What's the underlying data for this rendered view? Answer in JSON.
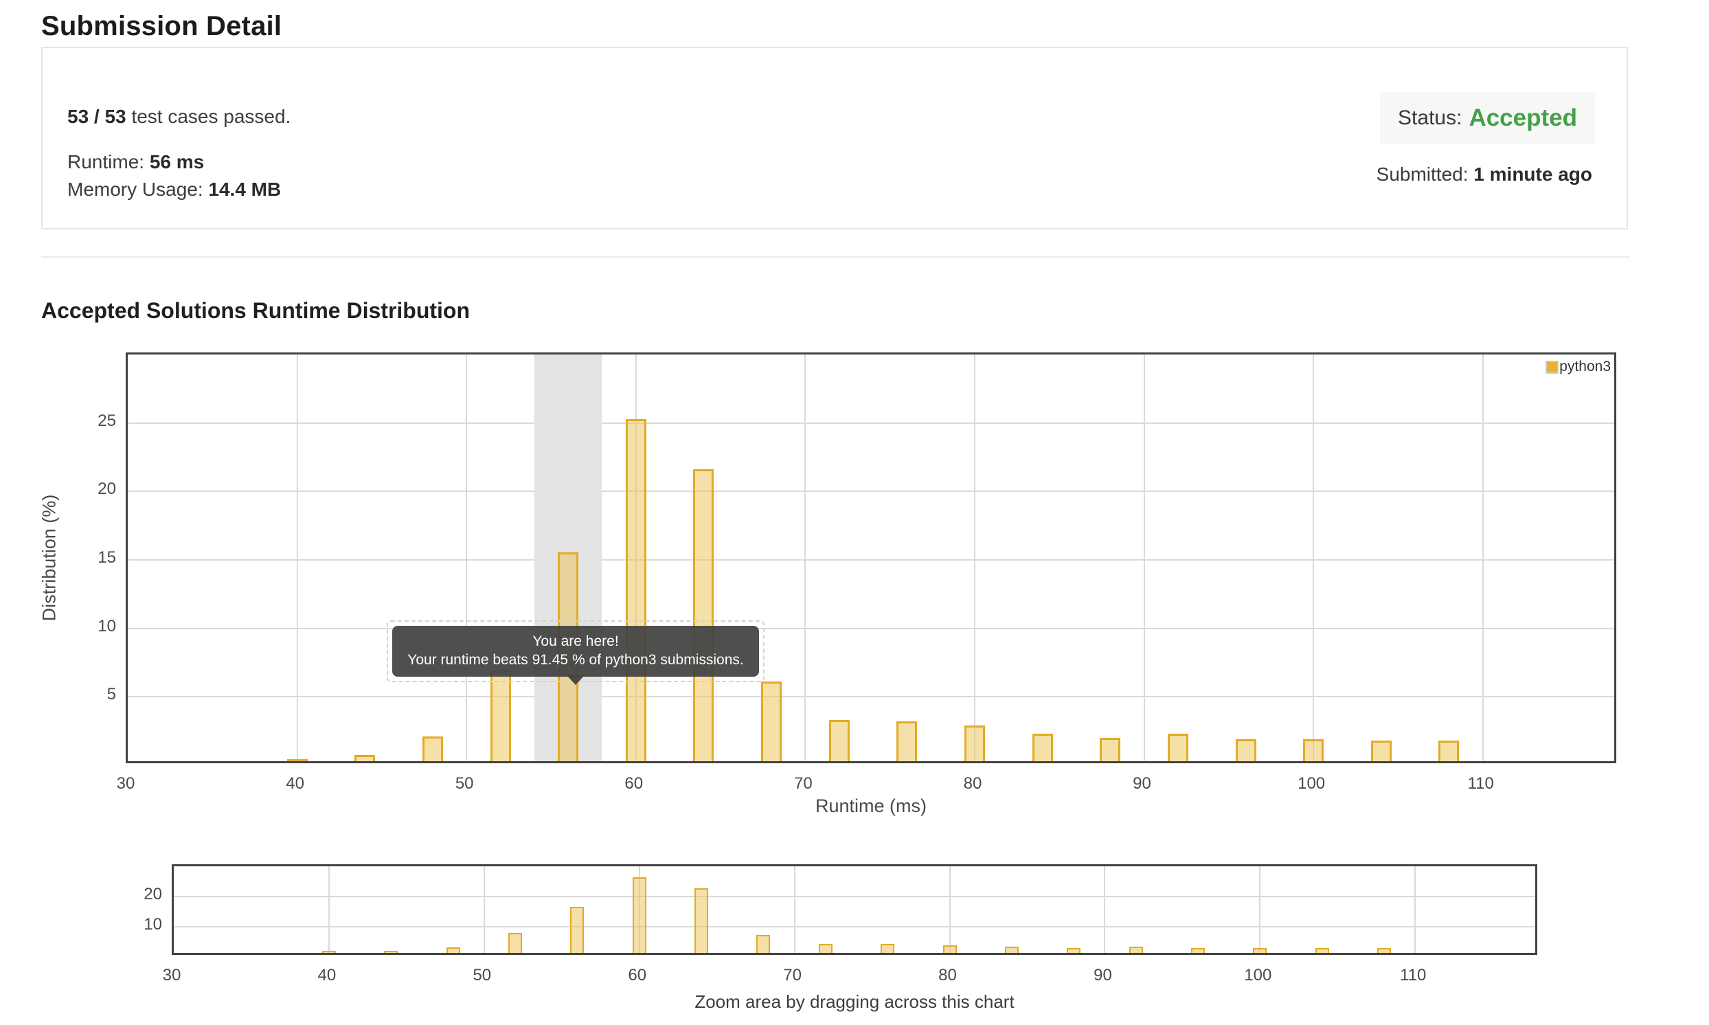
{
  "page": {
    "title": "Submission Detail"
  },
  "summary": {
    "tests_passed_bold": "53 / 53",
    "tests_passed_rest": " test cases passed.",
    "runtime_label": "Runtime: ",
    "runtime_value": "56 ms",
    "memory_label": "Memory Usage: ",
    "memory_value": "14.4 MB",
    "status_label": "Status:",
    "status_value": "Accepted",
    "status_color": "#43a047",
    "submitted_label": "Submitted: ",
    "submitted_value": "1 minute ago"
  },
  "section": {
    "title": "Accepted Solutions Runtime Distribution"
  },
  "tooltip": {
    "line1": "You are here!",
    "line2": "Your runtime beats 91.45 % of python3 submissions."
  },
  "chart_data": {
    "type": "bar",
    "title": "Accepted Solutions Runtime Distribution",
    "xlabel": "Runtime (ms)",
    "ylabel": "Distribution (%)",
    "legend": [
      {
        "label": "python3",
        "color": "#e8b331"
      }
    ],
    "x": [
      40,
      44,
      48,
      52,
      56,
      60,
      64,
      68,
      72,
      76,
      80,
      84,
      88,
      92,
      96,
      100,
      104,
      108
    ],
    "values": [
      0.15,
      0.45,
      1.8,
      6.6,
      15.25,
      25.0,
      21.3,
      5.8,
      3.0,
      2.9,
      2.6,
      2.0,
      1.7,
      2.0,
      1.6,
      1.6,
      1.5,
      1.5
    ],
    "xlim": [
      30,
      118
    ],
    "ylim": [
      0,
      30
    ],
    "x_ticks": [
      30,
      40,
      50,
      60,
      70,
      80,
      90,
      100,
      110
    ],
    "y_ticks": [
      5,
      10,
      15,
      20,
      25
    ],
    "highlight_band": {
      "from": 54,
      "to": 58
    },
    "user_runtime_ms": 56,
    "bar_fill": "rgba(237,200,94,0.55)",
    "bar_stroke": "#e2ab25",
    "grid": true,
    "legend_position": "top-right",
    "mini_chart": {
      "role": "zoom-brush",
      "y_ticks": [
        10,
        20
      ],
      "caption": "Zoom area by dragging across this chart"
    }
  }
}
